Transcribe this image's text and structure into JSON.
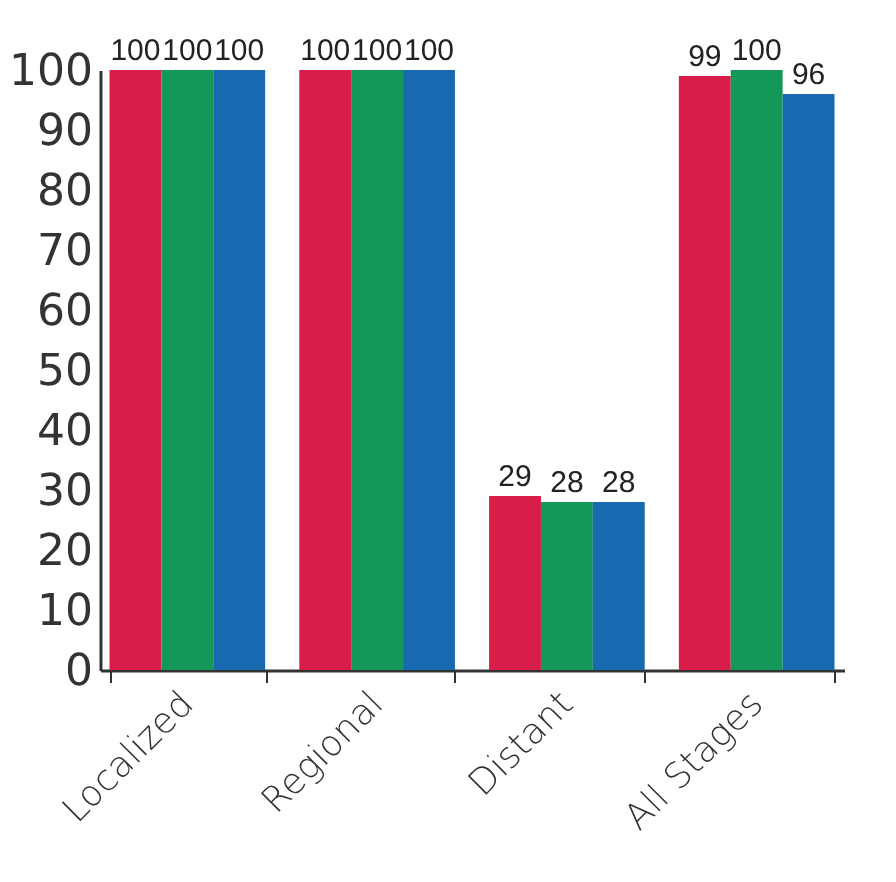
{
  "chart_data": {
    "type": "bar",
    "categories": [
      "Localized",
      "Regional",
      "Distant",
      "All Stages"
    ],
    "series": [
      {
        "color": "#d81e48",
        "values": [
          100,
          100,
          29,
          99
        ]
      },
      {
        "color": "#13985a",
        "values": [
          100,
          100,
          28,
          100
        ]
      },
      {
        "color": "#1769b0",
        "values": [
          100,
          100,
          28,
          96
        ]
      }
    ],
    "ylim": [
      0,
      100
    ],
    "yticks": [
      0,
      10,
      20,
      30,
      40,
      50,
      60,
      70,
      80,
      90,
      100
    ],
    "data_labels": true,
    "grid": false,
    "legend": false
  }
}
